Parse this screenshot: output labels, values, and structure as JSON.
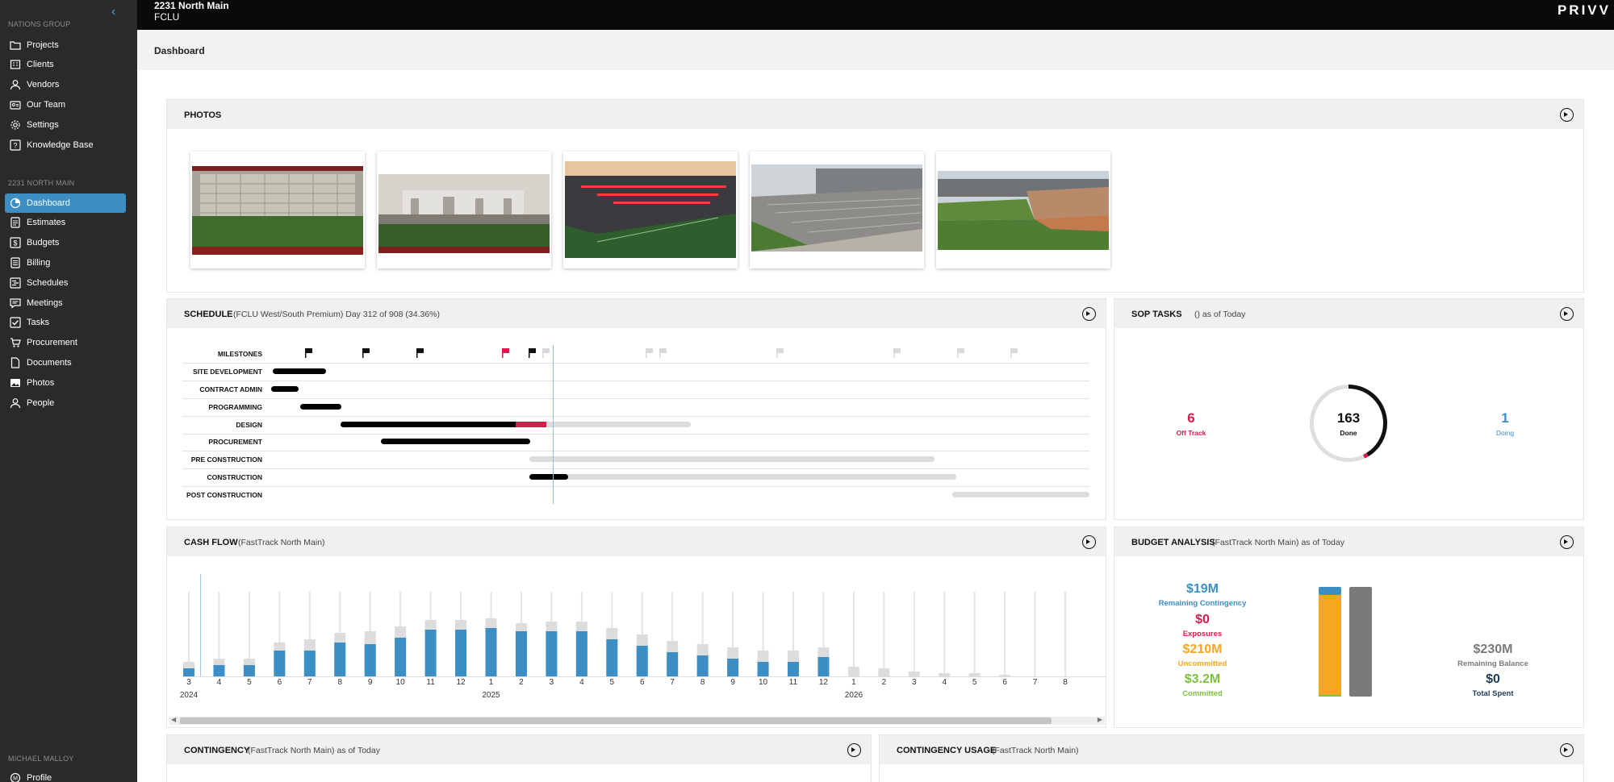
{
  "sidebar": {
    "org_label": "NATIONS GROUP",
    "org_items": [
      {
        "label": "Projects",
        "icon": "folder-icon"
      },
      {
        "label": "Clients",
        "icon": "building-icon"
      },
      {
        "label": "Vendors",
        "icon": "person-icon"
      },
      {
        "label": "Our Team",
        "icon": "team-icon"
      },
      {
        "label": "Settings",
        "icon": "gear-icon"
      },
      {
        "label": "Knowledge Base",
        "icon": "question-icon"
      }
    ],
    "project_label": "2231 NORTH MAIN",
    "project_items": [
      {
        "label": "Dashboard",
        "icon": "dashboard-icon",
        "active": true
      },
      {
        "label": "Estimates",
        "icon": "document-icon"
      },
      {
        "label": "Budgets",
        "icon": "dollar-icon"
      },
      {
        "label": "Billing",
        "icon": "invoice-icon"
      },
      {
        "label": "Schedules",
        "icon": "schedule-icon"
      },
      {
        "label": "Meetings",
        "icon": "chat-icon"
      },
      {
        "label": "Tasks",
        "icon": "checkbox-icon"
      },
      {
        "label": "Procurement",
        "icon": "cart-icon"
      },
      {
        "label": "Documents",
        "icon": "file-icon"
      },
      {
        "label": "Photos",
        "icon": "image-icon"
      },
      {
        "label": "People",
        "icon": "person-icon"
      }
    ],
    "user_label": "MICHAEL MALLOY",
    "user_items": [
      {
        "label": "Profile",
        "icon": "profile-icon"
      }
    ]
  },
  "topbar": {
    "title": "2231 North Main",
    "subtitle": "FCLU",
    "brand": "PRIVV"
  },
  "page": {
    "title": "Dashboard"
  },
  "photos": {
    "title": "PHOTOS",
    "count": 5
  },
  "schedule": {
    "title": "SCHEDULE",
    "subtitle": "(FCLU West/South Premium)   Day 312 of 908 (34.36%)",
    "milestones_label": "MILESTONES",
    "rows": [
      "SITE DEVELOPMENT",
      "CONTRACT ADMIN",
      "PROGRAMMING",
      "DESIGN",
      "PROCUREMENT",
      "PRE CONSTRUCTION",
      "CONSTRUCTION",
      "POST CONSTRUCTION"
    ],
    "colors": {
      "done": "#000000",
      "late": "#d81b4a",
      "planned": "#dcdcdc",
      "today": "#8fbfe0"
    }
  },
  "sop": {
    "title": "SOP TASKS",
    "subtitle": "()   as of Today",
    "off_track_value": "6",
    "off_track_label": "Off Track",
    "done_value": "163",
    "done_label": "Done",
    "doing_value": "1",
    "doing_label": "Doing",
    "colors": {
      "off_track": "#d81b4a",
      "doing": "#3b8fc4"
    }
  },
  "cashflow": {
    "title": "CASH FLOW",
    "subtitle": "(FastTrack North Main)",
    "ticks": [
      "3",
      "4",
      "5",
      "6",
      "7",
      "8",
      "9",
      "10",
      "11",
      "12",
      "1",
      "2",
      "3",
      "4",
      "5",
      "6",
      "7",
      "8",
      "9",
      "10",
      "11",
      "12",
      "1",
      "2",
      "3",
      "4",
      "5",
      "6",
      "7",
      "8"
    ],
    "years": [
      {
        "label": "2024",
        "index": 0
      },
      {
        "label": "2025",
        "index": 10
      },
      {
        "label": "2026",
        "index": 22
      }
    ]
  },
  "budget": {
    "title": "BUDGET ANALYSIS",
    "subtitle": "(FastTrack North Main)   as of Today",
    "contingency_value": "$19M",
    "contingency_label": "Remaining Contingency",
    "exposures_value": "$0",
    "exposures_label": "Exposures",
    "uncommitted_value": "$210M",
    "uncommitted_label": "Uncommitted",
    "committed_value": "$3.2M",
    "committed_label": "Committed",
    "balance_value": "$230M",
    "balance_label": "Remaining Balance",
    "spent_value": "$0",
    "spent_label": "Total Spent",
    "colors": {
      "contingency": "#3b8fc4",
      "exposures": "#d81b4a",
      "uncommitted": "#f5a623",
      "committed": "#7cc142",
      "balance": "#7a7a7a",
      "spent": "#1f3b5a"
    }
  },
  "contingency": {
    "title": "CONTINGENCY",
    "subtitle": "(FastTrack North Main)   as of Today"
  },
  "contingency_usage": {
    "title": "CONTINGENCY USAGE",
    "subtitle": "(FastTrack North Main)"
  }
}
